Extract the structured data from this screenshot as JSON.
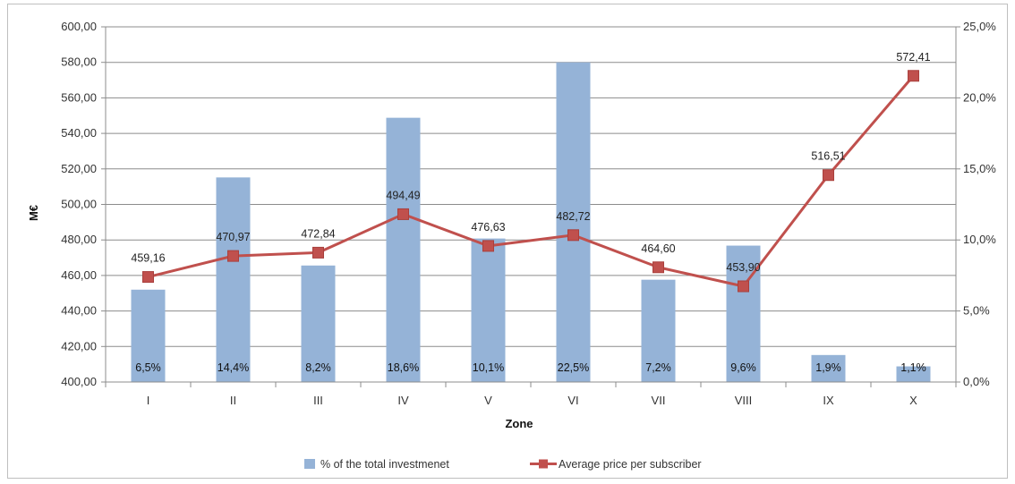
{
  "chart_data": {
    "type": "bar+line",
    "title": "",
    "xlabel": "Zone",
    "ylabel": "M€",
    "categories": [
      "I",
      "II",
      "III",
      "IV",
      "V",
      "VI",
      "VII",
      "VIII",
      "IX",
      "X"
    ],
    "y_left": {
      "lim": [
        400,
        600
      ],
      "ticks": [
        "400,00",
        "420,00",
        "440,00",
        "460,00",
        "480,00",
        "500,00",
        "520,00",
        "540,00",
        "560,00",
        "580,00",
        "600,00"
      ]
    },
    "y_right": {
      "lim": [
        0,
        25
      ],
      "ticks": [
        "0,0%",
        "5,0%",
        "10,0%",
        "15,0%",
        "20,0%",
        "25,0%"
      ]
    },
    "grid": true,
    "legend_position": "bottom",
    "series": [
      {
        "name": "% of the total investmenet",
        "type": "bar",
        "axis": "right",
        "color": "#95b3d7",
        "values": [
          6.5,
          14.4,
          8.2,
          18.6,
          10.1,
          22.5,
          7.2,
          9.6,
          1.9,
          1.1
        ],
        "labels": [
          "6,5%",
          "14,4%",
          "8,2%",
          "18,6%",
          "10,1%",
          "22,5%",
          "7,2%",
          "9,6%",
          "1,9%",
          "1,1%"
        ]
      },
      {
        "name": "Average price per subscriber",
        "type": "line",
        "axis": "left",
        "color": "#c0504d",
        "values": [
          459.16,
          470.97,
          472.84,
          494.49,
          476.63,
          482.72,
          464.6,
          453.9,
          516.51,
          572.41
        ],
        "labels": [
          "459,16",
          "470,97",
          "472,84",
          "494,49",
          "476,63",
          "482,72",
          "464,60",
          "453,90",
          "516,51",
          "572,41"
        ]
      }
    ]
  }
}
